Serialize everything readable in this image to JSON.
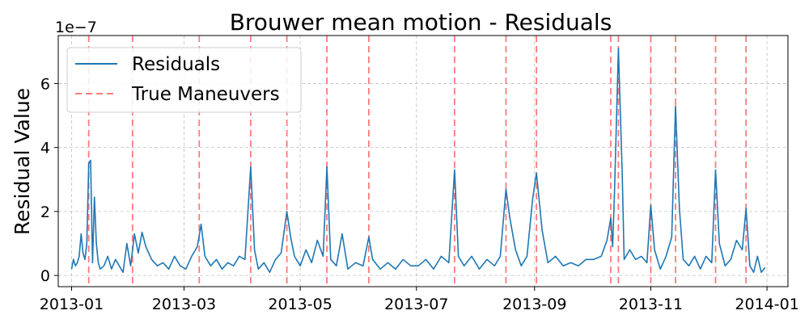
{
  "chart_data": {
    "type": "line",
    "title": "Brouwer mean motion - Residuals",
    "xlabel": "",
    "ylabel": "Residual Value",
    "y_scale_label": "1e−7",
    "xlim": [
      "2012-12-25",
      "2014-01-12"
    ],
    "ylim": [
      -0.35,
      7.5
    ],
    "y_unit_multiplier": 1e-07,
    "x_ticks": [
      "2013-01",
      "2013-03",
      "2013-05",
      "2013-07",
      "2013-09",
      "2013-11",
      "2014-01"
    ],
    "x_tick_dates": [
      "2013-01-01",
      "2013-03-01",
      "2013-05-01",
      "2013-07-01",
      "2013-09-01",
      "2013-11-01",
      "2014-01-01"
    ],
    "y_ticks": [
      0,
      2,
      4,
      6
    ],
    "y_tick_labels": [
      "0",
      "2",
      "4",
      "6"
    ],
    "grid": true,
    "legend_position": "top-left",
    "colors": {
      "residuals": "#1f77b4",
      "maneuvers": "#ff5a5a"
    },
    "series": [
      {
        "name": "Residuals",
        "style": "solid",
        "points": [
          [
            "2013-01-01",
            0.2
          ],
          [
            "2013-01-02",
            0.5
          ],
          [
            "2013-01-03",
            0.3
          ],
          [
            "2013-01-04",
            0.4
          ],
          [
            "2013-01-05",
            0.6
          ],
          [
            "2013-01-06",
            1.3
          ],
          [
            "2013-01-07",
            0.7
          ],
          [
            "2013-01-08",
            0.5
          ],
          [
            "2013-01-09",
            1.0
          ],
          [
            "2013-01-10",
            3.5
          ],
          [
            "2013-01-11",
            3.6
          ],
          [
            "2013-01-12",
            0.4
          ],
          [
            "2013-01-13",
            2.45
          ],
          [
            "2013-01-14",
            1.0
          ],
          [
            "2013-01-15",
            0.4
          ],
          [
            "2013-01-16",
            0.2
          ],
          [
            "2013-01-18",
            0.3
          ],
          [
            "2013-01-20",
            0.6
          ],
          [
            "2013-01-22",
            0.2
          ],
          [
            "2013-01-24",
            0.5
          ],
          [
            "2013-01-26",
            0.3
          ],
          [
            "2013-01-28",
            0.1
          ],
          [
            "2013-01-30",
            1.0
          ],
          [
            "2013-02-01",
            0.3
          ],
          [
            "2013-02-03",
            1.3
          ],
          [
            "2013-02-05",
            0.7
          ],
          [
            "2013-02-07",
            1.35
          ],
          [
            "2013-02-09",
            0.9
          ],
          [
            "2013-02-12",
            0.5
          ],
          [
            "2013-02-15",
            0.3
          ],
          [
            "2013-02-18",
            0.4
          ],
          [
            "2013-02-21",
            0.2
          ],
          [
            "2013-02-24",
            0.6
          ],
          [
            "2013-02-27",
            0.3
          ],
          [
            "2013-03-02",
            0.2
          ],
          [
            "2013-03-05",
            0.6
          ],
          [
            "2013-03-08",
            0.9
          ],
          [
            "2013-03-10",
            1.6
          ],
          [
            "2013-03-12",
            0.6
          ],
          [
            "2013-03-15",
            0.3
          ],
          [
            "2013-03-18",
            0.5
          ],
          [
            "2013-03-21",
            0.2
          ],
          [
            "2013-03-24",
            0.4
          ],
          [
            "2013-03-27",
            0.3
          ],
          [
            "2013-03-30",
            0.6
          ],
          [
            "2013-04-02",
            0.5
          ],
          [
            "2013-04-05",
            3.4
          ],
          [
            "2013-04-07",
            0.8
          ],
          [
            "2013-04-09",
            0.2
          ],
          [
            "2013-04-12",
            0.4
          ],
          [
            "2013-04-15",
            0.1
          ],
          [
            "2013-04-18",
            0.5
          ],
          [
            "2013-04-21",
            0.7
          ],
          [
            "2013-04-24",
            2.0
          ],
          [
            "2013-04-26",
            1.2
          ],
          [
            "2013-04-28",
            0.6
          ],
          [
            "2013-05-01",
            0.3
          ],
          [
            "2013-05-04",
            0.8
          ],
          [
            "2013-05-07",
            0.4
          ],
          [
            "2013-05-10",
            1.1
          ],
          [
            "2013-05-13",
            0.6
          ],
          [
            "2013-05-15",
            3.4
          ],
          [
            "2013-05-17",
            0.5
          ],
          [
            "2013-05-20",
            0.3
          ],
          [
            "2013-05-23",
            1.3
          ],
          [
            "2013-05-26",
            0.2
          ],
          [
            "2013-05-30",
            0.4
          ],
          [
            "2013-06-03",
            0.3
          ],
          [
            "2013-06-06",
            1.2
          ],
          [
            "2013-06-08",
            0.5
          ],
          [
            "2013-06-12",
            0.2
          ],
          [
            "2013-06-16",
            0.4
          ],
          [
            "2013-06-20",
            0.2
          ],
          [
            "2013-06-24",
            0.5
          ],
          [
            "2013-06-28",
            0.3
          ],
          [
            "2013-07-02",
            0.3
          ],
          [
            "2013-07-06",
            0.5
          ],
          [
            "2013-07-10",
            0.2
          ],
          [
            "2013-07-14",
            0.6
          ],
          [
            "2013-07-18",
            0.4
          ],
          [
            "2013-07-21",
            3.3
          ],
          [
            "2013-07-23",
            0.6
          ],
          [
            "2013-07-26",
            0.3
          ],
          [
            "2013-07-30",
            0.6
          ],
          [
            "2013-08-03",
            0.2
          ],
          [
            "2013-08-07",
            0.5
          ],
          [
            "2013-08-11",
            0.3
          ],
          [
            "2013-08-14",
            0.6
          ],
          [
            "2013-08-17",
            2.7
          ],
          [
            "2013-08-19",
            1.8
          ],
          [
            "2013-08-22",
            0.8
          ],
          [
            "2013-08-25",
            0.3
          ],
          [
            "2013-08-28",
            0.6
          ],
          [
            "2013-08-31",
            2.4
          ],
          [
            "2013-09-02",
            3.2
          ],
          [
            "2013-09-05",
            1.4
          ],
          [
            "2013-09-08",
            0.4
          ],
          [
            "2013-09-12",
            0.6
          ],
          [
            "2013-09-16",
            0.3
          ],
          [
            "2013-09-20",
            0.4
          ],
          [
            "2013-09-24",
            0.3
          ],
          [
            "2013-09-28",
            0.5
          ],
          [
            "2013-10-02",
            0.5
          ],
          [
            "2013-10-06",
            0.6
          ],
          [
            "2013-10-09",
            1.1
          ],
          [
            "2013-10-11",
            1.8
          ],
          [
            "2013-10-12",
            0.9
          ],
          [
            "2013-10-13",
            2.7
          ],
          [
            "2013-10-15",
            7.1
          ],
          [
            "2013-10-17",
            3.2
          ],
          [
            "2013-10-18",
            0.5
          ],
          [
            "2013-10-21",
            0.8
          ],
          [
            "2013-10-24",
            0.5
          ],
          [
            "2013-10-27",
            0.6
          ],
          [
            "2013-10-30",
            0.4
          ],
          [
            "2013-11-01",
            2.2
          ],
          [
            "2013-11-03",
            0.8
          ],
          [
            "2013-11-06",
            0.2
          ],
          [
            "2013-11-09",
            0.6
          ],
          [
            "2013-11-12",
            1.2
          ],
          [
            "2013-11-14",
            5.3
          ],
          [
            "2013-11-16",
            2.1
          ],
          [
            "2013-11-18",
            0.5
          ],
          [
            "2013-11-21",
            0.3
          ],
          [
            "2013-11-24",
            0.6
          ],
          [
            "2013-11-27",
            0.2
          ],
          [
            "2013-11-30",
            0.6
          ],
          [
            "2013-12-03",
            0.4
          ],
          [
            "2013-12-05",
            3.3
          ],
          [
            "2013-12-07",
            1.0
          ],
          [
            "2013-12-10",
            0.3
          ],
          [
            "2013-12-13",
            0.5
          ],
          [
            "2013-12-16",
            1.1
          ],
          [
            "2013-12-19",
            0.8
          ],
          [
            "2013-12-21",
            2.1
          ],
          [
            "2013-12-23",
            0.3
          ],
          [
            "2013-12-25",
            0.1
          ],
          [
            "2013-12-27",
            0.6
          ],
          [
            "2013-12-29",
            0.1
          ],
          [
            "2013-12-31",
            0.25
          ]
        ]
      },
      {
        "name": "True Maneuvers",
        "style": "dashed",
        "maneuver_dates": [
          "2013-01-10",
          "2013-02-02",
          "2013-03-09",
          "2013-04-05",
          "2013-04-24",
          "2013-05-15",
          "2013-06-06",
          "2013-07-21",
          "2013-08-17",
          "2013-09-02",
          "2013-10-11",
          "2013-10-15",
          "2013-11-01",
          "2013-11-14",
          "2013-12-05",
          "2013-12-21"
        ]
      }
    ]
  }
}
